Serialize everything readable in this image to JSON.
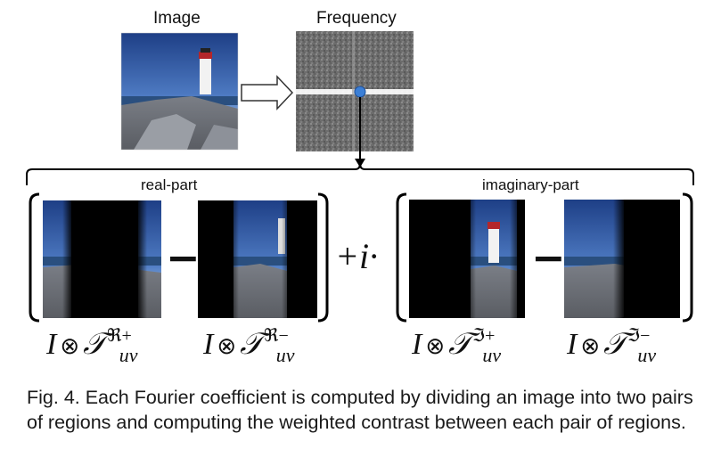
{
  "top": {
    "image_label": "Image",
    "frequency_label": "Frequency"
  },
  "real": {
    "label": "real-part",
    "formula_left": {
      "base": "I",
      "op": "⊗",
      "T": "𝒯",
      "sup": "ℜ+",
      "sub": "uv"
    },
    "formula_right": {
      "base": "I",
      "op": "⊗",
      "T": "𝒯",
      "sup": "ℜ−",
      "sub": "uv"
    },
    "minus": "−"
  },
  "imag": {
    "label": "imaginary-part",
    "formula_left": {
      "base": "I",
      "op": "⊗",
      "T": "𝒯",
      "sup": "ℑ+",
      "sub": "uv"
    },
    "formula_right": {
      "base": "I",
      "op": "⊗",
      "T": "𝒯",
      "sup": "ℑ−",
      "sub": "uv"
    },
    "minus": "−"
  },
  "plus_i": "+i·",
  "caption": "Fig. 4. Each Fourier coefficient is computed by dividing an image into two pairs of regions and computing the weighted contrast between each pair of regions.",
  "colors": {
    "sky": "#2f5ea8",
    "dot": "#3b7fd6",
    "stripe": "#ffffff"
  }
}
